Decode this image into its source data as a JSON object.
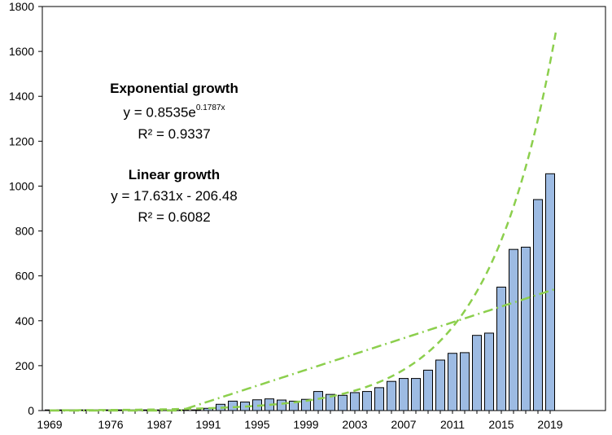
{
  "chart_data": {
    "type": "bar",
    "title": "",
    "xlabel": "",
    "ylabel": "",
    "ylim": [
      0,
      1800
    ],
    "y_ticks": [
      0,
      200,
      400,
      600,
      800,
      1000,
      1200,
      1400,
      1600,
      1800
    ],
    "x_tick_labels": [
      "1969",
      "1976",
      "1987",
      "1991",
      "1995",
      "1999",
      "2003",
      "2007",
      "2011",
      "2015",
      "2019"
    ],
    "categories": [
      "1969",
      "1970",
      "1971",
      "1972",
      "1974",
      "1976",
      "1977",
      "1980",
      "1984",
      "1987",
      "1988",
      "1989",
      "1990",
      "1991",
      "1992",
      "1993",
      "1994",
      "1995",
      "1996",
      "1997",
      "1998",
      "1999",
      "2000",
      "2001",
      "2002",
      "2003",
      "2004",
      "2005",
      "2006",
      "2007",
      "2008",
      "2009",
      "2010",
      "2011",
      "2012",
      "2013",
      "2014",
      "2015",
      "2016",
      "2017",
      "2018",
      "2019"
    ],
    "values": [
      1,
      1,
      1,
      1,
      1,
      1,
      1,
      1,
      1,
      1,
      1,
      2,
      3,
      10,
      28,
      42,
      38,
      48,
      52,
      47,
      42,
      50,
      85,
      72,
      68,
      80,
      85,
      102,
      130,
      143,
      143,
      180,
      225,
      255,
      258,
      335,
      345,
      550,
      718,
      728,
      940,
      1055
    ],
    "bar_color": "#9dbbe3",
    "bar_edge_color": "#000000",
    "trendline_color": "#8ccf4d",
    "trendlines": [
      {
        "name": "exponential",
        "style": "dashed",
        "a": 0.8535,
        "b": 0.1787
      },
      {
        "name": "linear",
        "style": "dash-dot",
        "slope": 17.631,
        "intercept": -206.48
      }
    ],
    "annotations": {
      "exp_title": "Exponential growth",
      "exp_eq_prefix": "y = 0.8535e",
      "exp_eq_exp": "0.1787x",
      "exp_r2": "R² = 0.9337",
      "lin_title": "Linear growth",
      "lin_eq": "y = 17.631x - 206.48",
      "lin_r2": "R² = 0.6082"
    }
  }
}
